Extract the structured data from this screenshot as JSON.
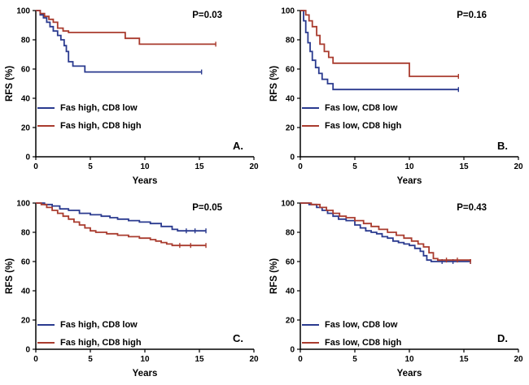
{
  "colors": {
    "blue": "#2A3A8F",
    "red": "#A93B2E",
    "axis": "#000000",
    "background": "#FFFFFF",
    "text": "#000000"
  },
  "chart_data": [
    {
      "type": "line",
      "title": "",
      "panel_label": "A.",
      "p_value": "P=0.03",
      "xlabel": "Years",
      "ylabel": "RFS (%)",
      "xlim": [
        0,
        20
      ],
      "ylim": [
        0,
        100
      ],
      "xticks": [
        0,
        5,
        10,
        15,
        20
      ],
      "yticks": [
        0,
        20,
        40,
        60,
        80,
        100
      ],
      "legend_position": "lower left",
      "series": [
        {
          "name": "Fas high, CD8 low",
          "color": "blue",
          "x": [
            0,
            0.4,
            0.7,
            1.0,
            1.3,
            1.6,
            2.0,
            2.3,
            2.6,
            2.8,
            3.0,
            3.4,
            4.5,
            15.2
          ],
          "y": [
            100,
            97,
            95,
            92,
            89,
            86,
            83,
            80,
            76,
            72,
            65,
            62,
            58,
            58
          ],
          "censors": [
            15.2
          ]
        },
        {
          "name": "Fas high, CD8 high",
          "color": "red",
          "x": [
            0,
            0.4,
            0.8,
            1.2,
            1.6,
            2.0,
            2.5,
            3.0,
            8.2,
            9.5,
            16.5
          ],
          "y": [
            100,
            98,
            96,
            94,
            92,
            88,
            86,
            85,
            81,
            77,
            77
          ],
          "censors": [
            16.5
          ]
        }
      ]
    },
    {
      "type": "line",
      "title": "",
      "panel_label": "B.",
      "p_value": "P=0.16",
      "xlabel": "Years",
      "ylabel": "RFS (%)",
      "xlim": [
        0,
        20
      ],
      "ylim": [
        0,
        100
      ],
      "xticks": [
        0,
        5,
        10,
        15,
        20
      ],
      "yticks": [
        0,
        20,
        40,
        60,
        80,
        100
      ],
      "legend_position": "lower left",
      "series": [
        {
          "name": "Fas low, CD8 low",
          "color": "blue",
          "x": [
            0,
            0.3,
            0.5,
            0.7,
            0.9,
            1.1,
            1.4,
            1.7,
            2.0,
            2.5,
            3.0,
            14.5
          ],
          "y": [
            100,
            93,
            85,
            78,
            72,
            66,
            61,
            57,
            53,
            50,
            46,
            46
          ],
          "censors": [
            14.5
          ]
        },
        {
          "name": "Fas low, CD8 high",
          "color": "red",
          "x": [
            0,
            0.5,
            0.8,
            1.1,
            1.5,
            1.8,
            2.2,
            2.6,
            3.0,
            10.0,
            14.5
          ],
          "y": [
            100,
            97,
            93,
            89,
            83,
            77,
            72,
            68,
            64,
            55,
            55
          ],
          "censors": [
            14.5
          ]
        }
      ]
    },
    {
      "type": "line",
      "title": "",
      "panel_label": "C.",
      "p_value": "P=0.05",
      "xlabel": "Years",
      "ylabel": "RFS (%)",
      "xlim": [
        0,
        20
      ],
      "ylim": [
        0,
        100
      ],
      "xticks": [
        0,
        5,
        10,
        15,
        20
      ],
      "yticks": [
        0,
        20,
        40,
        60,
        80,
        100
      ],
      "legend_position": "lower left",
      "series": [
        {
          "name": "Fas high, CD8 low",
          "color": "blue",
          "x": [
            0,
            0.8,
            1.5,
            2.2,
            3.0,
            4.0,
            5.0,
            6.0,
            6.8,
            7.5,
            8.5,
            9.5,
            10.5,
            11.5,
            12.5,
            13.0,
            15.6
          ],
          "y": [
            100,
            99,
            98,
            96,
            95,
            93,
            92,
            91,
            90,
            89,
            88,
            87,
            86,
            84,
            82,
            81,
            81
          ],
          "censors": [
            13.8,
            14.6,
            15.6
          ]
        },
        {
          "name": "Fas high, CD8 high",
          "color": "red",
          "x": [
            0,
            0.5,
            1.0,
            1.5,
            2.0,
            2.5,
            3.0,
            3.5,
            4.0,
            4.5,
            5.0,
            5.5,
            6.5,
            7.5,
            8.5,
            9.5,
            10.5,
            11.0,
            11.5,
            12.0,
            12.5,
            15.6
          ],
          "y": [
            100,
            99,
            97,
            95,
            93,
            91,
            89,
            87,
            85,
            83,
            81,
            80,
            79,
            78,
            77,
            76,
            75,
            74,
            73,
            72,
            71,
            71
          ],
          "censors": [
            13.2,
            14.2,
            15.6
          ]
        }
      ]
    },
    {
      "type": "line",
      "title": "",
      "panel_label": "D.",
      "p_value": "P=0.43",
      "xlabel": "Years",
      "ylabel": "RFS (%)",
      "xlim": [
        0,
        20
      ],
      "ylim": [
        0,
        100
      ],
      "xticks": [
        0,
        5,
        10,
        15,
        20
      ],
      "yticks": [
        0,
        20,
        40,
        60,
        80,
        100
      ],
      "legend_position": "lower left",
      "series": [
        {
          "name": "Fas low, CD8 low",
          "color": "blue",
          "x": [
            0,
            0.8,
            1.5,
            2.0,
            2.5,
            3.0,
            3.5,
            4.2,
            5.0,
            5.5,
            6.0,
            6.5,
            7.0,
            7.5,
            8.0,
            8.5,
            9.0,
            9.5,
            10.0,
            10.5,
            11.0,
            11.3,
            11.6,
            12.0,
            15.6
          ],
          "y": [
            100,
            99,
            97,
            95,
            93,
            91,
            89,
            88,
            85,
            83,
            81,
            80,
            79,
            77,
            76,
            74,
            73,
            72,
            71,
            69,
            67,
            64,
            61,
            60,
            60
          ],
          "censors": [
            13.0,
            14.0,
            15.6
          ]
        },
        {
          "name": "Fas low, CD8 high",
          "color": "red",
          "x": [
            0,
            1.0,
            1.8,
            2.4,
            3.0,
            3.6,
            4.2,
            5.0,
            5.8,
            6.5,
            7.2,
            8.0,
            8.8,
            9.5,
            10.2,
            10.8,
            11.3,
            11.8,
            12.2,
            12.6,
            15.6
          ],
          "y": [
            100,
            99,
            97,
            95,
            93,
            91,
            90,
            88,
            86,
            84,
            82,
            80,
            78,
            76,
            74,
            72,
            70,
            66,
            62,
            61,
            60
          ],
          "censors": [
            13.4,
            14.4,
            15.6
          ]
        }
      ]
    }
  ]
}
